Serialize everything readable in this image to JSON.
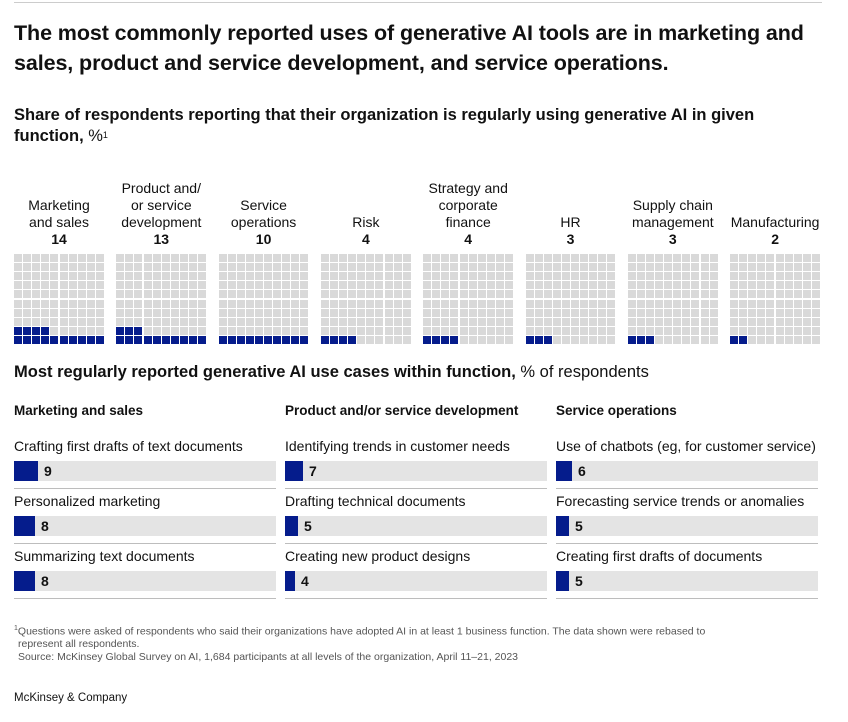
{
  "headline": "The most commonly reported uses of generative AI tools are in marketing and sales, product and service development, and service operations.",
  "section1": {
    "title_bold": "Share of respondents reporting that their organization is regularly using generative AI in given function,",
    "title_unit": " %",
    "title_note": "1"
  },
  "section2": {
    "title_bold": "Most regularly reported generative AI use cases within function,",
    "title_unit": " % of respondents"
  },
  "colors": {
    "accent": "#051c8c",
    "empty": "#d9d9d9",
    "track": "#e4e4e4"
  },
  "chart_data": [
    {
      "type": "waffle",
      "grid": "10x10",
      "categories": [
        "Marketing and sales",
        "Product and/ or service development",
        "Service operations",
        "Risk",
        "Strategy and corporate finance",
        "HR",
        "Supply chain management",
        "Manufacturing"
      ],
      "label_lines": [
        [
          "Marketing",
          "and sales"
        ],
        [
          "Product and/",
          "or service",
          "development"
        ],
        [
          "Service",
          "operations"
        ],
        [
          "Risk"
        ],
        [
          "Strategy and",
          "corporate",
          "finance"
        ],
        [
          "HR"
        ],
        [
          "Supply chain",
          "management"
        ],
        [
          "Manufacturing"
        ]
      ],
      "values": [
        14,
        13,
        10,
        4,
        4,
        3,
        3,
        2
      ],
      "value_labels": [
        "14",
        "13",
        "10",
        "4",
        "4",
        "3",
        "3",
        "2"
      ]
    },
    {
      "type": "bar",
      "xlim": [
        0,
        100
      ],
      "groups": [
        {
          "name": "Marketing and sales",
          "items": [
            {
              "label": "Crafting first drafts of text documents",
              "value": 9
            },
            {
              "label": "Personalized marketing",
              "value": 8
            },
            {
              "label": "Summarizing text documents",
              "value": 8
            }
          ]
        },
        {
          "name": "Product and/or service development",
          "items": [
            {
              "label": "Identifying trends in customer needs",
              "value": 7
            },
            {
              "label": "Drafting technical documents",
              "value": 5
            },
            {
              "label": "Creating new product designs",
              "value": 4
            }
          ]
        },
        {
          "name": "Service operations",
          "items": [
            {
              "label": "Use of chatbots (eg, for customer service)",
              "value": 6
            },
            {
              "label": "Forecasting service trends or anomalies",
              "value": 5
            },
            {
              "label": "Creating first drafts of documents",
              "value": 5
            }
          ]
        }
      ]
    }
  ],
  "footnote": {
    "marker": "1",
    "line1": "Questions were asked of respondents who said their organizations have adopted AI in at least 1 business function. The data shown were rebased to",
    "line2": "represent all respondents.",
    "source": "Source: McKinsey Global Survey on AI, 1,684 participants at all levels of the organization, April 11–21, 2023"
  },
  "brand": "McKinsey & Company"
}
